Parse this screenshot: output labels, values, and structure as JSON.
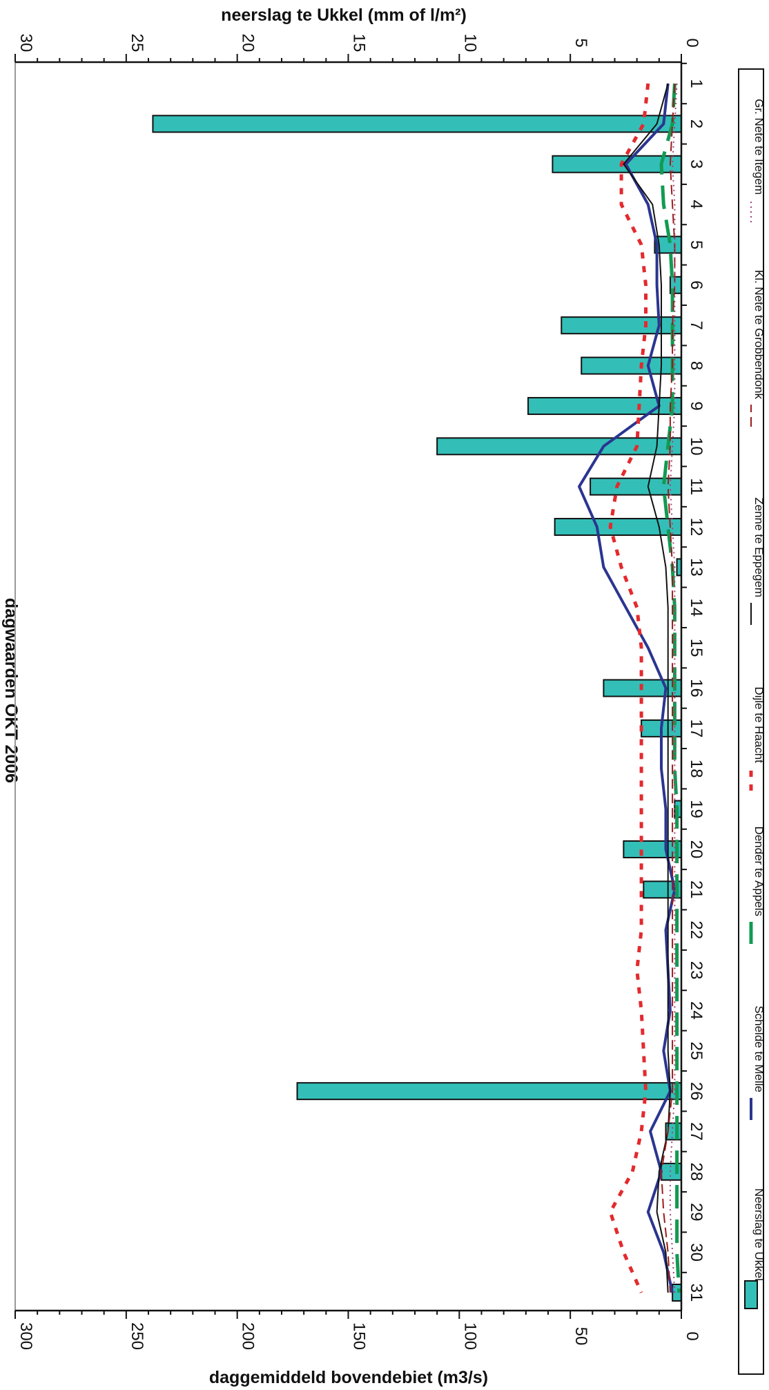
{
  "chart_data": {
    "type": "bar+line",
    "title": "dagwaarden OKT 2006",
    "orientation": "rotated-90",
    "days": [
      1,
      2,
      3,
      4,
      5,
      6,
      7,
      8,
      9,
      10,
      11,
      12,
      13,
      14,
      15,
      16,
      17,
      18,
      19,
      20,
      21,
      22,
      23,
      24,
      25,
      26,
      27,
      28,
      29,
      30,
      31
    ],
    "precip_axis": {
      "label": "neerslag te Ukkel (mm of l/m²)",
      "min": 0,
      "max": 30,
      "ticks": [
        0,
        5,
        10,
        15,
        20,
        25,
        30
      ]
    },
    "flow_axis": {
      "label": "daggemiddeld bovendebiet (m3/s)",
      "min": 0,
      "max": 300,
      "ticks": [
        0,
        50,
        100,
        150,
        200,
        250,
        300
      ]
    },
    "precip_series": {
      "name": "Neerslag te Ukkel",
      "color": "#33bfb8",
      "values": [
        0,
        23.8,
        5.8,
        0,
        1.2,
        0.5,
        5.4,
        4.5,
        6.9,
        11.0,
        4.1,
        5.7,
        0.2,
        0,
        0,
        3.5,
        1.8,
        0,
        0.3,
        2.6,
        1.7,
        0,
        0,
        0,
        0,
        17.3,
        0.7,
        0.9,
        0,
        0,
        0.4
      ]
    },
    "flow_series": [
      {
        "name": "Schelde te Melle",
        "color": "#2b3590",
        "dash": "",
        "width": 4,
        "values": [
          6,
          8,
          25,
          15,
          11,
          11,
          10,
          15,
          10,
          35,
          46,
          38,
          35,
          25,
          15,
          7,
          9,
          9,
          7,
          7,
          3,
          7,
          6,
          5,
          8,
          5,
          14,
          9,
          15,
          8,
          4
        ]
      },
      {
        "name": "Dender te Appels",
        "color": "#129a53",
        "dash": "34 16",
        "width": 5,
        "values": [
          3,
          4,
          9,
          8,
          5,
          4,
          4,
          4,
          4,
          6,
          8,
          6,
          4,
          3,
          3,
          3,
          3,
          3,
          2,
          2,
          2,
          2,
          2,
          2,
          2,
          2,
          2,
          2,
          2,
          2,
          1
        ]
      },
      {
        "name": "Dijle te Haacht",
        "color": "#e32a2e",
        "dash": "9 11",
        "width": 5,
        "values": [
          15,
          17,
          27,
          27,
          18,
          16,
          16,
          18,
          19,
          20,
          29,
          32,
          27,
          20,
          18,
          18,
          18,
          18,
          18,
          18,
          18,
          18,
          20,
          18,
          17,
          16,
          18,
          22,
          32,
          26,
          18
        ]
      },
      {
        "name": "Zenne te Eppegem",
        "color": "#111111",
        "dash": "",
        "width": 2,
        "values": [
          6,
          11,
          26,
          13,
          10,
          9,
          9,
          9,
          10,
          11,
          15,
          10,
          7,
          6,
          6,
          6,
          6,
          6,
          6,
          6,
          6,
          6,
          6,
          6,
          6,
          5,
          6,
          10,
          11,
          7,
          6
        ]
      },
      {
        "name": "Kl. Nete te Grobbendonk",
        "color": "#9b1b1b",
        "dash": "14 7",
        "width": 2,
        "values": [
          3,
          4,
          5,
          4,
          3,
          3,
          4,
          4,
          5,
          5,
          6,
          5,
          4,
          4,
          4,
          4,
          4,
          4,
          4,
          4,
          4,
          4,
          4,
          4,
          4,
          4,
          6,
          9,
          8,
          6,
          5
        ]
      },
      {
        "name": "Gr. Nete te Itegem",
        "color": "#a0407d",
        "dash": "2 5",
        "width": 2,
        "values": [
          2,
          3,
          4,
          3,
          3,
          3,
          3,
          3,
          3,
          4,
          5,
          4,
          3,
          3,
          3,
          3,
          3,
          3,
          3,
          3,
          3,
          3,
          3,
          3,
          3,
          3,
          4,
          5,
          5,
          4,
          3
        ]
      }
    ],
    "legend": "right",
    "grid": false
  }
}
